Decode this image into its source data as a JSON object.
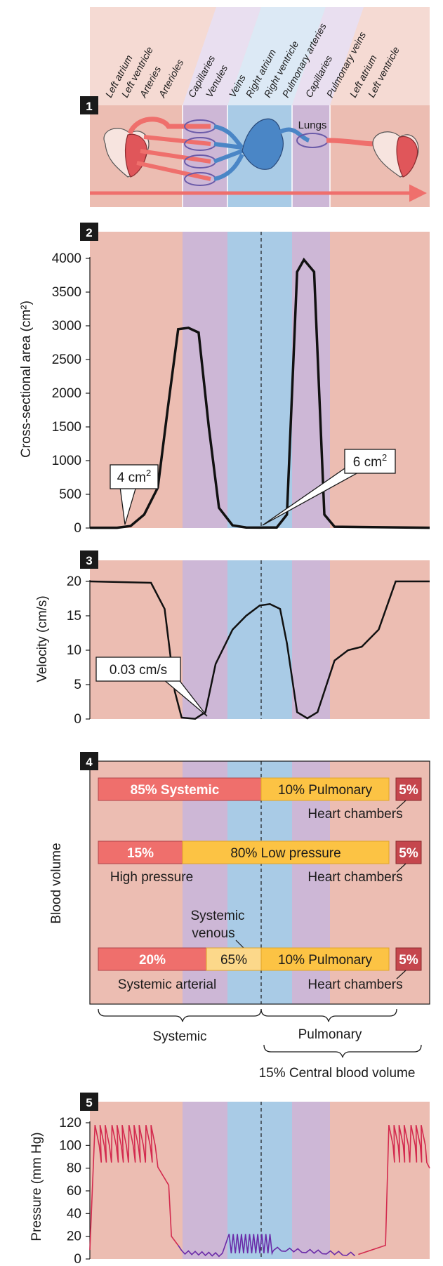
{
  "colors": {
    "systemic_bg": "#ecbdb2",
    "capillary_bg": "#cdb7d6",
    "venous_bg": "#a9cbe6",
    "pulmonary_bg": "#cdb7d6",
    "arterial_red": "#ef6f6c",
    "venous_blue": "#4a86c6",
    "yellow": "#fcc344",
    "pale_yellow": "#fcd88a",
    "dark_red": "#c5464d",
    "pressure_line": "#d32a4e",
    "pressure_low": "#6a2aa8"
  },
  "panel1": {
    "number": "1",
    "vessel_labels": [
      "Left atrium",
      "Left ventricle",
      "Arteries",
      "Arterioles",
      "Capillaries",
      "Venules",
      "Veins",
      "Right atrium",
      "Right ventricle",
      "Pulmonary arteries",
      "Capillaries",
      "Pulmonary veins",
      "Left atrium",
      "Left ventricle"
    ],
    "lungs_label": "Lungs",
    "icons": [
      "heart-icon",
      "capillary-network-icon",
      "lungs-icon",
      "flow-arrow-icon"
    ]
  },
  "panel2": {
    "number": "2",
    "ylabel": "Cross-sectional area (cm²)",
    "yticks": [
      "0",
      "500",
      "1000",
      "1500",
      "2000",
      "2500",
      "3000",
      "3500",
      "4000"
    ],
    "callout_left": {
      "value": "4",
      "unit": "cm",
      "sup": "2"
    },
    "callout_right": {
      "value": "6",
      "unit": "cm",
      "sup": "2"
    }
  },
  "panel3": {
    "number": "3",
    "ylabel": "Velocity (cm/s)",
    "yticks": [
      "0",
      "5",
      "10",
      "15",
      "20"
    ],
    "callout": "0.03 cm/s"
  },
  "panel4": {
    "number": "4",
    "ylabel": "Blood volume",
    "row1": {
      "systemic": "85% Systemic",
      "pulmonary": "10% Pulmonary",
      "heart": "5%",
      "heart_label": "Heart chambers"
    },
    "row2": {
      "high": "15%",
      "low": "80% Low pressure",
      "heart": "5%",
      "high_label": "High pressure",
      "heart_label": "Heart chambers"
    },
    "row3": {
      "arterial": "20%",
      "venous": "65%",
      "pulmonary": "10% Pulmonary",
      "heart": "5%",
      "venous_label_1": "Systemic",
      "venous_label_2": "venous",
      "arterial_label": "Systemic arterial",
      "heart_label": "Heart chambers"
    },
    "brace_systemic": "Systemic",
    "brace_pulmonary": "Pulmonary",
    "brace_central": "15% Central blood volume"
  },
  "panel5": {
    "number": "5",
    "ylabel": "Pressure (mm Hg)",
    "yticks": [
      "0",
      "20",
      "40",
      "60",
      "80",
      "100",
      "120"
    ]
  },
  "chart_data": [
    {
      "type": "line",
      "ylabel": "Cross-sectional area (cm²)",
      "ylim": [
        0,
        4000
      ],
      "x": [
        0,
        0.08,
        0.12,
        0.16,
        0.2,
        0.23,
        0.26,
        0.29,
        0.32,
        0.35,
        0.38,
        0.42,
        0.46,
        0.5,
        0.55,
        0.58,
        0.61,
        0.63,
        0.66,
        0.69,
        0.72,
        1.0
      ],
      "values": [
        4,
        4,
        30,
        200,
        600,
        1800,
        2950,
        2970,
        2900,
        1500,
        300,
        40,
        8,
        6,
        8,
        200,
        3800,
        3980,
        3800,
        200,
        20,
        4
      ]
    },
    {
      "type": "line",
      "ylabel": "Velocity (cm/s)",
      "ylim": [
        0,
        20
      ],
      "x": [
        0,
        0.18,
        0.22,
        0.25,
        0.27,
        0.31,
        0.34,
        0.37,
        0.42,
        0.46,
        0.5,
        0.53,
        0.56,
        0.58,
        0.61,
        0.64,
        0.67,
        0.72,
        0.76,
        0.8,
        0.85,
        0.9,
        1.0
      ],
      "values": [
        20,
        19.8,
        16,
        4,
        0.2,
        0.03,
        1,
        8,
        13,
        15,
        16.5,
        16.7,
        16,
        11,
        1,
        0.1,
        1,
        8.5,
        10,
        10.5,
        13,
        20,
        20
      ]
    },
    {
      "type": "line",
      "ylabel": "Pressure (mm Hg)",
      "ylim": [
        0,
        120
      ],
      "x": [
        0,
        0.02,
        0.06,
        0.1,
        0.14,
        0.18,
        0.2,
        0.23,
        0.26,
        0.3,
        0.35,
        0.4,
        0.45,
        0.5,
        0.55,
        0.6,
        0.65,
        0.7,
        0.75,
        0.8,
        0.84,
        0.87,
        0.9,
        0.94,
        1.0
      ],
      "values": [
        8,
        118,
        100,
        118,
        100,
        118,
        85,
        70,
        12,
        8,
        6,
        4,
        3,
        20,
        18,
        10,
        8,
        6,
        4,
        3,
        4,
        12,
        118,
        100,
        80
      ]
    }
  ]
}
